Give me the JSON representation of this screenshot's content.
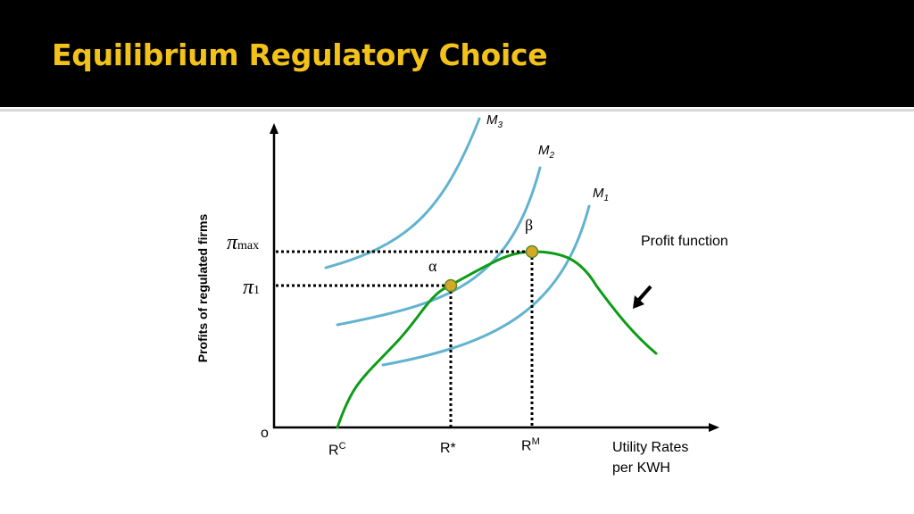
{
  "slide": {
    "title": "Equilibrium Regulatory Choice",
    "title_color": "#f2c21b"
  },
  "diagram": {
    "y_axis_label": "Profits of regulated firms",
    "origin_label": "o",
    "x_axis_label_line1": "Utility Rates",
    "x_axis_label_line2": "per KWH",
    "y_ticks": {
      "pi_max": {
        "symbol": "π",
        "subscript": "max"
      },
      "pi_1": {
        "symbol": "π",
        "subscript": "1"
      }
    },
    "x_ticks": {
      "r_c": {
        "base": "R",
        "superscript": "C"
      },
      "r_star": {
        "text": "R*"
      },
      "r_m": {
        "base": "R",
        "superscript": "M"
      }
    },
    "curves": {
      "m3": {
        "base": "M",
        "subscript": "3"
      },
      "m2": {
        "base": "M",
        "subscript": "2"
      },
      "m1": {
        "base": "M",
        "subscript": "1"
      },
      "profit_function_label": "Profit function"
    },
    "points": {
      "alpha": {
        "label": "α"
      },
      "beta": {
        "label": "β"
      }
    },
    "colors": {
      "indifference_curves": "#62b3cf",
      "profit_curve": "#0d9c17",
      "point_fill": "#d4a92a",
      "point_stroke": "#5a8a1e",
      "axis": "#000000"
    },
    "arrow_icon": "arrow-down-left-icon"
  }
}
